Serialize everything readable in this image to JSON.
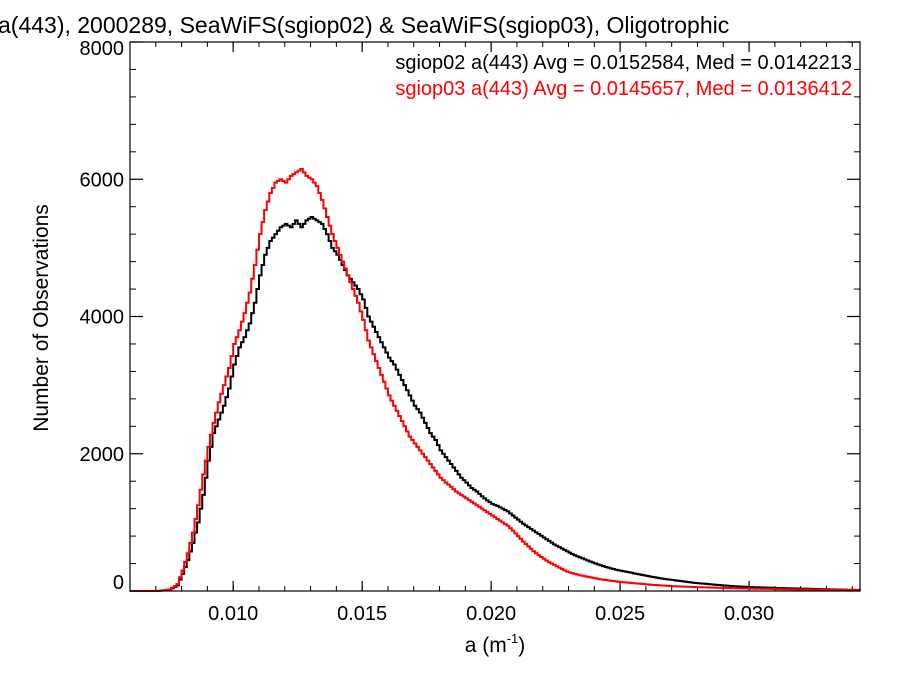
{
  "chart_data": {
    "type": "line",
    "title": "a(443), 2000289, SeaWiFS(sgiop02) & SeaWiFS(sgiop03), Oligotrophic",
    "xlabel": "a (m",
    "xlabel_sup": "-1",
    "xlabel_suffix": ")",
    "ylabel": "Number of Observations",
    "xlim": [
      0.006,
      0.0343
    ],
    "ylim": [
      0,
      8000
    ],
    "xticks": [
      {
        "value": 0.01,
        "label": "0.010"
      },
      {
        "value": 0.015,
        "label": "0.015"
      },
      {
        "value": 0.02,
        "label": "0.020"
      },
      {
        "value": 0.025,
        "label": "0.025"
      },
      {
        "value": 0.03,
        "label": "0.030"
      }
    ],
    "yticks": [
      {
        "value": 0,
        "label": "0"
      },
      {
        "value": 2000,
        "label": "2000"
      },
      {
        "value": 4000,
        "label": "4000"
      },
      {
        "value": 6000,
        "label": "6000"
      },
      {
        "value": 8000,
        "label": "8000"
      }
    ],
    "grid": false,
    "legend_position": "top-right",
    "series": [
      {
        "name": "sgiop02 a(443) Avg = 0.0152584, Med = 0.0142213",
        "color": "#000000",
        "points": [
          [
            0.006,
            0
          ],
          [
            0.007,
            0
          ],
          [
            0.0075,
            20
          ],
          [
            0.0078,
            80
          ],
          [
            0.008,
            250
          ],
          [
            0.0082,
            450
          ],
          [
            0.0084,
            700
          ],
          [
            0.0086,
            1000
          ],
          [
            0.0088,
            1400
          ],
          [
            0.009,
            1900
          ],
          [
            0.0092,
            2300
          ],
          [
            0.0094,
            2500
          ],
          [
            0.0096,
            2700
          ],
          [
            0.0098,
            2950
          ],
          [
            0.01,
            3300
          ],
          [
            0.0102,
            3550
          ],
          [
            0.0104,
            3700
          ],
          [
            0.0106,
            3900
          ],
          [
            0.0108,
            4200
          ],
          [
            0.011,
            4600
          ],
          [
            0.0112,
            4900
          ],
          [
            0.0114,
            5100
          ],
          [
            0.0116,
            5200
          ],
          [
            0.0118,
            5300
          ],
          [
            0.012,
            5350
          ],
          [
            0.0122,
            5300
          ],
          [
            0.0124,
            5400
          ],
          [
            0.0126,
            5300
          ],
          [
            0.0128,
            5400
          ],
          [
            0.013,
            5450
          ],
          [
            0.0132,
            5400
          ],
          [
            0.0134,
            5350
          ],
          [
            0.0136,
            5200
          ],
          [
            0.0138,
            5000
          ],
          [
            0.014,
            4900
          ],
          [
            0.0142,
            4750
          ],
          [
            0.0144,
            4600
          ],
          [
            0.0146,
            4500
          ],
          [
            0.0148,
            4400
          ],
          [
            0.015,
            4250
          ],
          [
            0.0152,
            4000
          ],
          [
            0.0154,
            3850
          ],
          [
            0.0156,
            3700
          ],
          [
            0.0158,
            3550
          ],
          [
            0.016,
            3400
          ],
          [
            0.0162,
            3300
          ],
          [
            0.0164,
            3150
          ],
          [
            0.0166,
            3000
          ],
          [
            0.0168,
            2850
          ],
          [
            0.017,
            2700
          ],
          [
            0.0172,
            2600
          ],
          [
            0.0174,
            2450
          ],
          [
            0.0176,
            2300
          ],
          [
            0.0178,
            2200
          ],
          [
            0.018,
            2050
          ],
          [
            0.0182,
            1950
          ],
          [
            0.0184,
            1850
          ],
          [
            0.0186,
            1750
          ],
          [
            0.0188,
            1650
          ],
          [
            0.019,
            1580
          ],
          [
            0.0192,
            1500
          ],
          [
            0.0194,
            1450
          ],
          [
            0.0196,
            1380
          ],
          [
            0.0198,
            1320
          ],
          [
            0.02,
            1270
          ],
          [
            0.0202,
            1240
          ],
          [
            0.0204,
            1200
          ],
          [
            0.0206,
            1160
          ],
          [
            0.0208,
            1100
          ],
          [
            0.021,
            1040
          ],
          [
            0.0212,
            980
          ],
          [
            0.0214,
            930
          ],
          [
            0.0216,
            880
          ],
          [
            0.0218,
            830
          ],
          [
            0.022,
            780
          ],
          [
            0.0222,
            730
          ],
          [
            0.0224,
            680
          ],
          [
            0.0226,
            640
          ],
          [
            0.0228,
            600
          ],
          [
            0.023,
            560
          ],
          [
            0.0232,
            520
          ],
          [
            0.0234,
            490
          ],
          [
            0.0236,
            460
          ],
          [
            0.0238,
            430
          ],
          [
            0.024,
            400
          ],
          [
            0.0244,
            350
          ],
          [
            0.0248,
            310
          ],
          [
            0.0252,
            280
          ],
          [
            0.0256,
            250
          ],
          [
            0.026,
            220
          ],
          [
            0.0266,
            180
          ],
          [
            0.0272,
            150
          ],
          [
            0.0278,
            120
          ],
          [
            0.0284,
            100
          ],
          [
            0.029,
            80
          ],
          [
            0.0296,
            65
          ],
          [
            0.0302,
            55
          ],
          [
            0.031,
            45
          ],
          [
            0.032,
            35
          ],
          [
            0.033,
            25
          ],
          [
            0.0343,
            15
          ]
        ]
      },
      {
        "name": "sgiop03 a(443) Avg = 0.0145657, Med = 0.0136412",
        "color": "#ff0000",
        "points": [
          [
            0.006,
            0
          ],
          [
            0.007,
            0
          ],
          [
            0.0075,
            20
          ],
          [
            0.0078,
            100
          ],
          [
            0.008,
            300
          ],
          [
            0.0082,
            550
          ],
          [
            0.0084,
            850
          ],
          [
            0.0086,
            1250
          ],
          [
            0.0088,
            1700
          ],
          [
            0.009,
            2100
          ],
          [
            0.0092,
            2450
          ],
          [
            0.0094,
            2750
          ],
          [
            0.0096,
            3000
          ],
          [
            0.0098,
            3250
          ],
          [
            0.01,
            3600
          ],
          [
            0.0102,
            3800
          ],
          [
            0.0104,
            4050
          ],
          [
            0.0106,
            4350
          ],
          [
            0.0108,
            4750
          ],
          [
            0.011,
            5200
          ],
          [
            0.0112,
            5550
          ],
          [
            0.0114,
            5800
          ],
          [
            0.0116,
            5950
          ],
          [
            0.0118,
            6000
          ],
          [
            0.012,
            5950
          ],
          [
            0.0122,
            6050
          ],
          [
            0.0124,
            6100
          ],
          [
            0.0126,
            6150
          ],
          [
            0.0128,
            6050
          ],
          [
            0.013,
            6000
          ],
          [
            0.0132,
            5900
          ],
          [
            0.0134,
            5700
          ],
          [
            0.0136,
            5450
          ],
          [
            0.0138,
            5200
          ],
          [
            0.014,
            5000
          ],
          [
            0.0142,
            4800
          ],
          [
            0.0144,
            4600
          ],
          [
            0.0146,
            4400
          ],
          [
            0.0148,
            4200
          ],
          [
            0.015,
            3950
          ],
          [
            0.0152,
            3650
          ],
          [
            0.0154,
            3450
          ],
          [
            0.0156,
            3250
          ],
          [
            0.0158,
            3050
          ],
          [
            0.016,
            2850
          ],
          [
            0.0162,
            2700
          ],
          [
            0.0164,
            2550
          ],
          [
            0.0166,
            2400
          ],
          [
            0.0168,
            2250
          ],
          [
            0.017,
            2150
          ],
          [
            0.0172,
            2050
          ],
          [
            0.0174,
            1950
          ],
          [
            0.0176,
            1850
          ],
          [
            0.0178,
            1750
          ],
          [
            0.018,
            1650
          ],
          [
            0.0182,
            1580
          ],
          [
            0.0184,
            1520
          ],
          [
            0.0186,
            1450
          ],
          [
            0.0188,
            1400
          ],
          [
            0.019,
            1350
          ],
          [
            0.0192,
            1300
          ],
          [
            0.0194,
            1250
          ],
          [
            0.0196,
            1200
          ],
          [
            0.0198,
            1150
          ],
          [
            0.02,
            1100
          ],
          [
            0.0202,
            1050
          ],
          [
            0.0204,
            1000
          ],
          [
            0.0206,
            950
          ],
          [
            0.0208,
            880
          ],
          [
            0.021,
            800
          ],
          [
            0.0212,
            720
          ],
          [
            0.0214,
            650
          ],
          [
            0.0216,
            580
          ],
          [
            0.0218,
            520
          ],
          [
            0.022,
            470
          ],
          [
            0.0222,
            420
          ],
          [
            0.0224,
            380
          ],
          [
            0.0226,
            340
          ],
          [
            0.0228,
            300
          ],
          [
            0.023,
            270
          ],
          [
            0.0234,
            230
          ],
          [
            0.0238,
            200
          ],
          [
            0.0242,
            170
          ],
          [
            0.0246,
            150
          ],
          [
            0.025,
            130
          ],
          [
            0.0256,
            110
          ],
          [
            0.0262,
            90
          ],
          [
            0.027,
            70
          ],
          [
            0.028,
            55
          ],
          [
            0.029,
            45
          ],
          [
            0.03,
            35
          ],
          [
            0.031,
            28
          ],
          [
            0.032,
            22
          ],
          [
            0.033,
            18
          ],
          [
            0.0343,
            12
          ]
        ]
      }
    ]
  }
}
